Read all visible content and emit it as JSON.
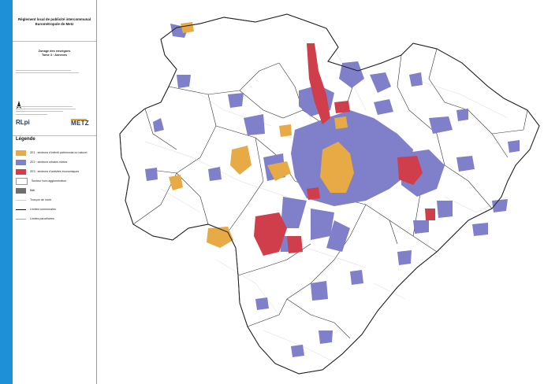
{
  "title": {
    "line1": "Règlement local de publicité intercommunal",
    "line2": "Eurométropole de Metz"
  },
  "zonage": {
    "line1": "Zonage des enseignes",
    "line2": "Tome 3 : Annexes"
  },
  "logos": {
    "rlpi": "RLpi",
    "metz": "METZ"
  },
  "legend": {
    "title": "Légende",
    "items": [
      {
        "label": "ZE1 : secteurs d'intérêt patrimonial ou naturel",
        "kind": "fill",
        "color": "#e8aa45"
      },
      {
        "label": "ZE2 : secteurs urbains mixtes",
        "kind": "fill",
        "color": "#7f80c9"
      },
      {
        "label": "ZE3 : secteurs d'activités économiques",
        "kind": "fill",
        "color": "#cf3e4a"
      },
      {
        "label": "Secteur hors agglomération",
        "kind": "fill",
        "color": "#ffffff"
      },
      {
        "label": "Bâti",
        "kind": "fill",
        "color": "#6e6e6e"
      },
      {
        "label": "Tronçon de route",
        "kind": "line",
        "color": "#c9c9c9"
      },
      {
        "label": "Limites communales",
        "kind": "line",
        "color": "#111111"
      },
      {
        "label": "Limites parcellaires",
        "kind": "line",
        "color": "#a0a0a0"
      }
    ]
  },
  "colors": {
    "accent_band": "#1e90d8",
    "ze1": "#e8aa45",
    "ze2": "#7f80c9",
    "ze3": "#cf3e4a",
    "commune_border": "#222222"
  }
}
